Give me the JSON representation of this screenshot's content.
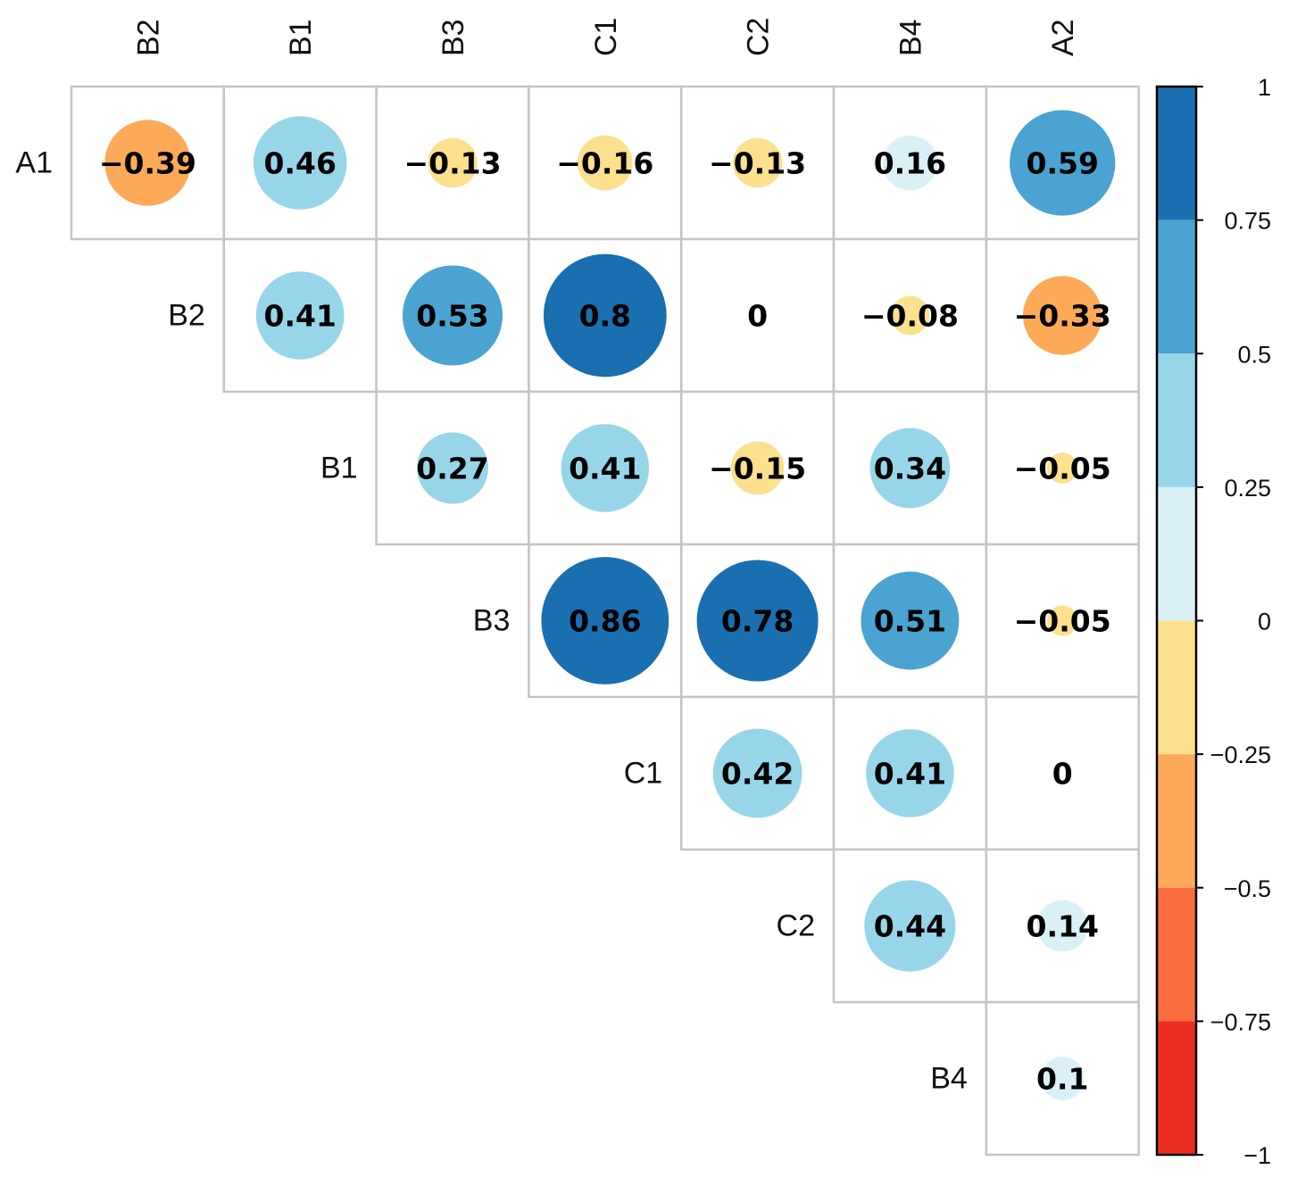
{
  "chart_data": {
    "type": "heatmap",
    "columns": [
      "B2",
      "B1",
      "B3",
      "C1",
      "C2",
      "B4",
      "A2"
    ],
    "rows": [
      "A1",
      "B2",
      "B1",
      "B3",
      "C1",
      "C2",
      "B4"
    ],
    "cells": [
      {
        "row": "A1",
        "col": "B2",
        "value": -0.39,
        "label": "−0.39"
      },
      {
        "row": "A1",
        "col": "B1",
        "value": 0.46,
        "label": "0.46"
      },
      {
        "row": "A1",
        "col": "B3",
        "value": -0.13,
        "label": "−0.13"
      },
      {
        "row": "A1",
        "col": "C1",
        "value": -0.16,
        "label": "−0.16"
      },
      {
        "row": "A1",
        "col": "C2",
        "value": -0.13,
        "label": "−0.13"
      },
      {
        "row": "A1",
        "col": "B4",
        "value": 0.16,
        "label": "0.16"
      },
      {
        "row": "A1",
        "col": "A2",
        "value": 0.59,
        "label": "0.59"
      },
      {
        "row": "B2",
        "col": "B1",
        "value": 0.41,
        "label": "0.41"
      },
      {
        "row": "B2",
        "col": "B3",
        "value": 0.53,
        "label": "0.53"
      },
      {
        "row": "B2",
        "col": "C1",
        "value": 0.8,
        "label": "0.8"
      },
      {
        "row": "B2",
        "col": "C2",
        "value": 0,
        "label": "0"
      },
      {
        "row": "B2",
        "col": "B4",
        "value": -0.08,
        "label": "−0.08"
      },
      {
        "row": "B2",
        "col": "A2",
        "value": -0.33,
        "label": "−0.33"
      },
      {
        "row": "B1",
        "col": "B3",
        "value": 0.27,
        "label": "0.27"
      },
      {
        "row": "B1",
        "col": "C1",
        "value": 0.41,
        "label": "0.41"
      },
      {
        "row": "B1",
        "col": "C2",
        "value": -0.15,
        "label": "−0.15"
      },
      {
        "row": "B1",
        "col": "B4",
        "value": 0.34,
        "label": "0.34"
      },
      {
        "row": "B1",
        "col": "A2",
        "value": -0.05,
        "label": "−0.05"
      },
      {
        "row": "B3",
        "col": "C1",
        "value": 0.86,
        "label": "0.86"
      },
      {
        "row": "B3",
        "col": "C2",
        "value": 0.78,
        "label": "0.78"
      },
      {
        "row": "B3",
        "col": "B4",
        "value": 0.51,
        "label": "0.51"
      },
      {
        "row": "B3",
        "col": "A2",
        "value": -0.05,
        "label": "−0.05"
      },
      {
        "row": "C1",
        "col": "C2",
        "value": 0.42,
        "label": "0.42"
      },
      {
        "row": "C1",
        "col": "B4",
        "value": 0.41,
        "label": "0.41"
      },
      {
        "row": "C1",
        "col": "A2",
        "value": 0,
        "label": "0"
      },
      {
        "row": "C2",
        "col": "B4",
        "value": 0.44,
        "label": "0.44"
      },
      {
        "row": "C2",
        "col": "A2",
        "value": 0.14,
        "label": "0.14"
      },
      {
        "row": "B4",
        "col": "A2",
        "value": 0.1,
        "label": "0.1"
      }
    ],
    "color_scale": {
      "range": [
        -1,
        1
      ],
      "ticks": [
        {
          "value": 1,
          "label": "1"
        },
        {
          "value": 0.75,
          "label": "0.75"
        },
        {
          "value": 0.5,
          "label": "0.5"
        },
        {
          "value": 0.25,
          "label": "0.25"
        },
        {
          "value": 0,
          "label": "0"
        },
        {
          "value": -0.25,
          "label": "−0.25"
        },
        {
          "value": -0.5,
          "label": "−0.5"
        },
        {
          "value": -0.75,
          "label": "−0.75"
        },
        {
          "value": -1,
          "label": "−1"
        }
      ],
      "bands": [
        {
          "from": 0.75,
          "to": 1,
          "color": "#1a6fb0"
        },
        {
          "from": 0.5,
          "to": 0.75,
          "color": "#4aa3d0"
        },
        {
          "from": 0.25,
          "to": 0.5,
          "color": "#97d6e8"
        },
        {
          "from": 0,
          "to": 0.25,
          "color": "#d9f1f6"
        },
        {
          "from": -0.25,
          "to": 0,
          "color": "#fde08e"
        },
        {
          "from": -0.5,
          "to": -0.25,
          "color": "#fcaa58"
        },
        {
          "from": -0.75,
          "to": -0.5,
          "color": "#f86c3e"
        },
        {
          "from": -1,
          "to": -0.75,
          "color": "#ec2f24"
        }
      ]
    },
    "marker": "circle",
    "circle_area_proportional_to_abs_value": true,
    "legend_placement": "right",
    "grid": true,
    "layout": "upper-triangle"
  }
}
